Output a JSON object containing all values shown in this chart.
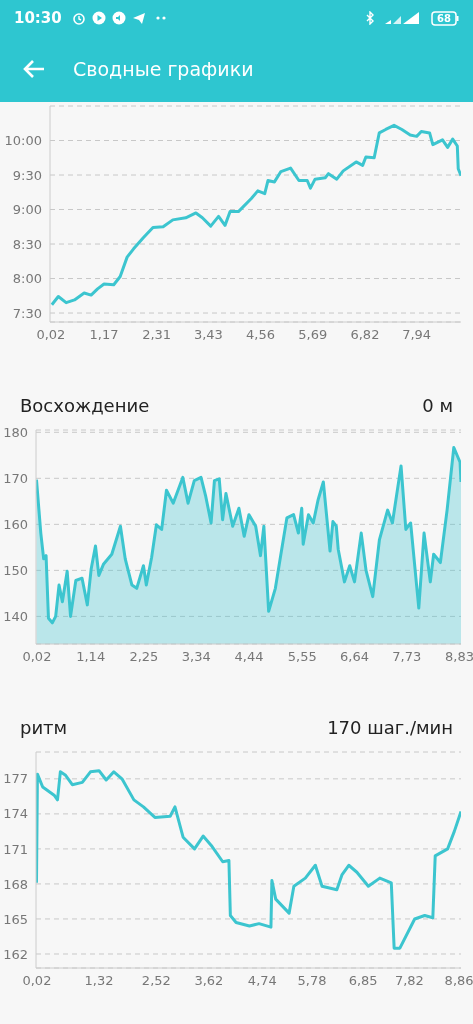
{
  "chart_data": [
    {
      "type": "line",
      "title": "Сводные графики",
      "annotations": [
        "10:30",
        "68"
      ],
      "grid": "y",
      "xlim": [
        0,
        8.9
      ],
      "ylim": [
        7.37,
        10.5
      ],
      "xticks": [
        {
          "value": 0.02,
          "label": "0,02"
        },
        {
          "value": 1.17,
          "label": "1,17"
        },
        {
          "value": 2.31,
          "label": "2,31"
        },
        {
          "value": 3.43,
          "label": "3,43"
        },
        {
          "value": 4.56,
          "label": "4,56"
        },
        {
          "value": 5.69,
          "label": "5,69"
        },
        {
          "value": 6.82,
          "label": "6,82"
        },
        {
          "value": 7.94,
          "label": "7,94"
        }
      ],
      "yticks": [
        {
          "value": 7.5,
          "label": "7:30"
        },
        {
          "value": 8,
          "label": "8:00"
        },
        {
          "value": 8.5,
          "label": "8:30"
        },
        {
          "value": 9,
          "label": "9:00"
        },
        {
          "value": 9.5,
          "label": "9:30"
        },
        {
          "value": 10,
          "label": "10:00"
        }
      ],
      "series": [
        {
          "color": "#3cc5cf",
          "x": [
            0.04,
            0.18,
            0.35,
            0.53,
            0.74,
            0.89,
            1.03,
            1.17,
            1.38,
            1.52,
            1.67,
            1.81,
            2.02,
            2.23,
            2.45,
            2.66,
            2.94,
            3.16,
            3.3,
            3.48,
            3.65,
            3.79,
            3.9,
            4.08,
            4.36,
            4.5,
            4.65,
            4.72,
            4.86,
            5.0,
            5.21,
            5.39,
            5.57,
            5.64,
            5.74,
            5.96,
            6.03,
            6.21,
            6.35,
            6.63,
            6.77,
            6.84,
            7.02,
            7.13,
            7.27,
            7.45,
            7.62,
            7.8,
            7.94,
            8.04,
            8.22,
            8.29,
            8.5,
            8.61,
            8.72,
            8.82,
            8.84,
            8.9
          ],
          "values": [
            7.62,
            7.74,
            7.65,
            7.69,
            7.79,
            7.76,
            7.85,
            7.92,
            7.91,
            8.03,
            8.31,
            8.43,
            8.59,
            8.74,
            8.75,
            8.85,
            8.88,
            8.95,
            8.88,
            8.76,
            8.9,
            8.77,
            8.97,
            8.97,
            9.16,
            9.27,
            9.23,
            9.42,
            9.4,
            9.55,
            9.6,
            9.42,
            9.42,
            9.31,
            9.44,
            9.46,
            9.52,
            9.44,
            9.56,
            9.69,
            9.64,
            9.76,
            9.75,
            10.11,
            10.16,
            10.22,
            10.16,
            10.08,
            10.06,
            10.13,
            10.11,
            9.94,
            10.01,
            9.9,
            10.02,
            9.92,
            9.59,
            9.49
          ]
        }
      ]
    },
    {
      "type": "area",
      "title": "Восхождение",
      "subtitle": "0 м",
      "grid": "y",
      "xlim": [
        0,
        8.86
      ],
      "ylim": [
        134,
        180.5
      ],
      "xticks": [
        {
          "value": 0.02,
          "label": "0,02"
        },
        {
          "value": 1.14,
          "label": "1,14"
        },
        {
          "value": 2.25,
          "label": "2,25"
        },
        {
          "value": 3.34,
          "label": "3,34"
        },
        {
          "value": 4.44,
          "label": "4,44"
        },
        {
          "value": 5.55,
          "label": "5,55"
        },
        {
          "value": 6.64,
          "label": "6,64"
        },
        {
          "value": 7.73,
          "label": "7,73"
        },
        {
          "value": 8.83,
          "label": "8,83"
        }
      ],
      "yticks": [
        140,
        150,
        160,
        170,
        180
      ],
      "series": [
        {
          "color": "#3cc5cf",
          "x": [
            0.01,
            0.1,
            0.16,
            0.21,
            0.26,
            0.34,
            0.41,
            0.48,
            0.55,
            0.65,
            0.72,
            0.83,
            0.96,
            1.07,
            1.15,
            1.24,
            1.31,
            1.41,
            1.58,
            1.76,
            1.86,
            2.0,
            2.1,
            2.24,
            2.3,
            2.41,
            2.51,
            2.62,
            2.72,
            2.86,
            3.06,
            3.17,
            3.3,
            3.44,
            3.54,
            3.65,
            3.72,
            3.82,
            3.89,
            3.96,
            4.1,
            4.23,
            4.34,
            4.44,
            4.58,
            4.68,
            4.75,
            4.85,
            4.99,
            5.09,
            5.23,
            5.37,
            5.47,
            5.54,
            5.57,
            5.68,
            5.78,
            5.88,
            5.99,
            6.13,
            6.19,
            6.26,
            6.3,
            6.43,
            6.54,
            6.64,
            6.78,
            6.88,
            7.02,
            7.16,
            7.33,
            7.43,
            7.61,
            7.71,
            7.81,
            7.98,
            8.09,
            8.22,
            8.29,
            8.43,
            8.57,
            8.71,
            8.84,
            8.86
          ],
          "values": [
            169.7,
            158.1,
            152.5,
            153.2,
            139.6,
            138.6,
            140.0,
            146.8,
            143.2,
            149.8,
            140.0,
            147.8,
            148.3,
            142.5,
            150.3,
            155.3,
            148.9,
            151.4,
            153.5,
            159.6,
            152.5,
            146.8,
            146.1,
            151.0,
            146.8,
            152.8,
            159.9,
            158.9,
            167.4,
            164.6,
            170.2,
            164.6,
            169.5,
            170.2,
            166.0,
            160.3,
            169.5,
            169.9,
            161.0,
            166.7,
            159.6,
            163.5,
            157.4,
            162.1,
            159.6,
            153.2,
            159.6,
            141.1,
            146.1,
            152.5,
            161.4,
            162.1,
            158.1,
            163.5,
            155.7,
            162.1,
            160.3,
            165.3,
            169.2,
            154.2,
            160.6,
            159.6,
            154.6,
            147.5,
            151.0,
            147.5,
            158.1,
            150.0,
            144.3,
            156.7,
            163.1,
            160.3,
            172.7,
            158.9,
            160.3,
            141.8,
            158.1,
            147.5,
            153.5,
            151.7,
            163.1,
            176.7,
            173.5,
            169.2
          ]
        }
      ]
    },
    {
      "type": "line",
      "title": "ритм",
      "subtitle": "170 шаг./мин",
      "grid": "y",
      "xlim": [
        0,
        8.9
      ],
      "ylim": [
        160.8,
        179.3
      ],
      "xticks": [
        {
          "value": 0.02,
          "label": "0,02"
        },
        {
          "value": 1.32,
          "label": "1,32"
        },
        {
          "value": 2.52,
          "label": "2,52"
        },
        {
          "value": 3.62,
          "label": "3,62"
        },
        {
          "value": 4.74,
          "label": "4,74"
        },
        {
          "value": 5.78,
          "label": "5,78"
        },
        {
          "value": 6.85,
          "label": "6,85"
        },
        {
          "value": 7.82,
          "label": "7,82"
        },
        {
          "value": 8.86,
          "label": "8,86"
        }
      ],
      "yticks": [
        162,
        165,
        168,
        171,
        174,
        177
      ],
      "series": [
        {
          "color": "#3cc5cf",
          "x": [
            0.01,
            0.03,
            0.14,
            0.38,
            0.45,
            0.51,
            0.62,
            0.76,
            0.97,
            1.14,
            1.32,
            1.47,
            1.63,
            1.8,
            2.05,
            2.25,
            2.49,
            2.81,
            2.91,
            3.08,
            3.32,
            3.5,
            3.67,
            3.91,
            4.04,
            4.07,
            4.19,
            4.47,
            4.67,
            4.92,
            4.94,
            5.02,
            5.3,
            5.4,
            5.64,
            5.85,
            5.99,
            6.3,
            6.41,
            6.55,
            6.72,
            6.96,
            7.2,
            7.44,
            7.5,
            7.62,
            7.93,
            8.14,
            8.31,
            8.36,
            8.62,
            8.76,
            8.9
          ],
          "values": [
            168.1,
            177.4,
            176.3,
            175.6,
            175.2,
            177.6,
            177.3,
            176.5,
            176.7,
            177.6,
            177.7,
            176.9,
            177.6,
            177.0,
            175.2,
            174.6,
            173.7,
            173.8,
            174.6,
            172.0,
            171.0,
            172.1,
            171.3,
            169.9,
            170.0,
            165.3,
            164.7,
            164.4,
            164.6,
            164.3,
            168.3,
            166.7,
            165.5,
            167.8,
            168.5,
            169.6,
            167.8,
            167.5,
            168.8,
            169.6,
            169.0,
            167.8,
            168.5,
            168.1,
            162.5,
            162.5,
            165.0,
            165.3,
            165.1,
            170.4,
            171.0,
            172.5,
            174.2
          ]
        }
      ]
    }
  ]
}
